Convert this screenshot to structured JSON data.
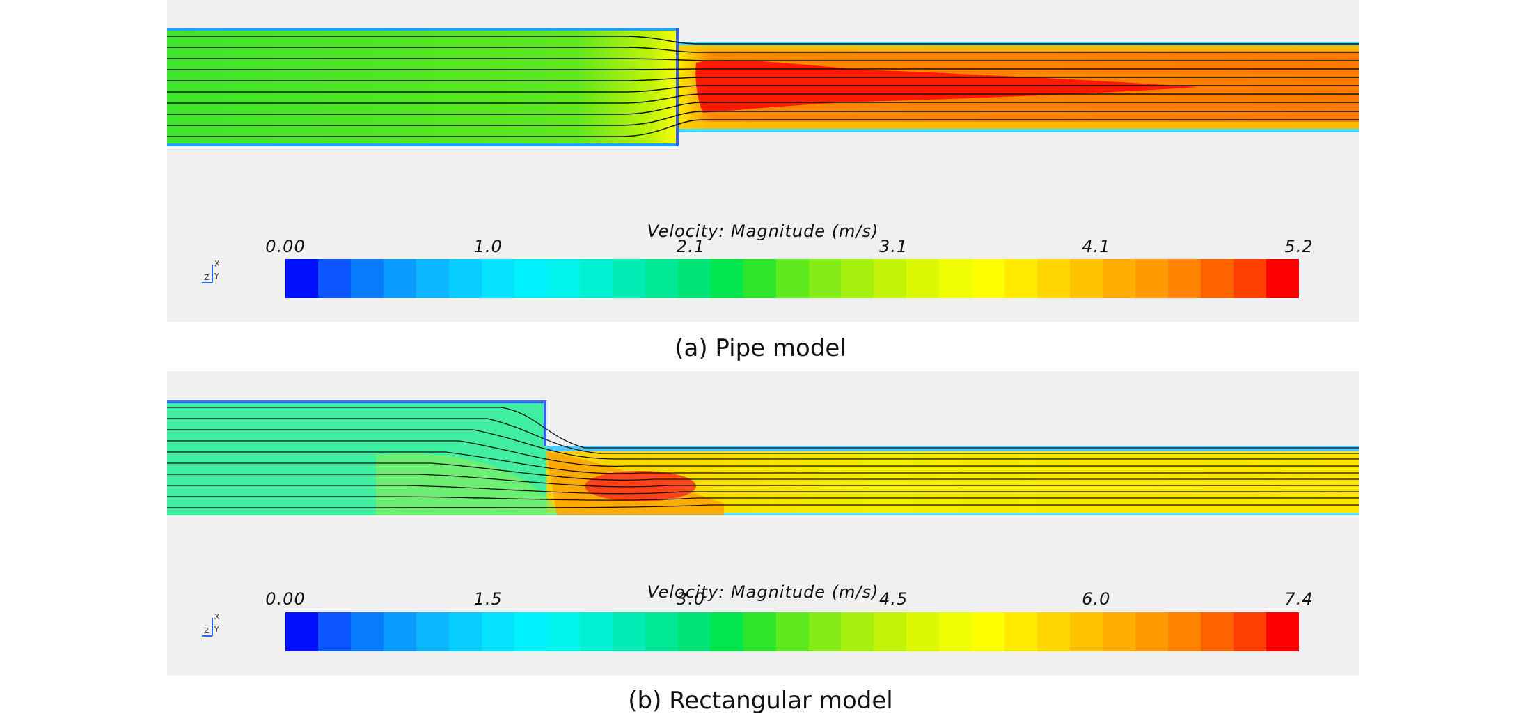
{
  "panels": [
    {
      "caption": "(a) Pipe model",
      "legend_title": "Velocity: Magnitude (m/s)",
      "ticks": [
        "0.00",
        "1.0",
        "2.1",
        "3.1",
        "4.1",
        "5.2"
      ],
      "axis_labels": {
        "x": "X",
        "y": "Y",
        "z": "Z"
      }
    },
    {
      "caption": "(b) Rectangular model",
      "legend_title": "Velocity: Magnitude (m/s)",
      "ticks": [
        "0.00",
        "1.5",
        "3.0",
        "4.5",
        "6.0",
        "7.4"
      ],
      "axis_labels": {
        "x": "X",
        "y": "Y",
        "z": "Z"
      }
    }
  ],
  "colormap": [
    "#0010ff",
    "#0a55ff",
    "#0a7dff",
    "#0a9cff",
    "#0ab6ff",
    "#08cdff",
    "#05e2ff",
    "#00f2ff",
    "#00f4ee",
    "#00f0d2",
    "#00ecb4",
    "#00e896",
    "#00e676",
    "#00e64c",
    "#2de52a",
    "#5ee81e",
    "#86ec16",
    "#a6f00e",
    "#c2f408",
    "#dcf802",
    "#f0fc00",
    "#ffff00",
    "#ffea00",
    "#ffd600",
    "#ffc200",
    "#ffae00",
    "#ff9a00",
    "#ff8200",
    "#ff6400",
    "#ff4000",
    "#ff0000"
  ]
}
